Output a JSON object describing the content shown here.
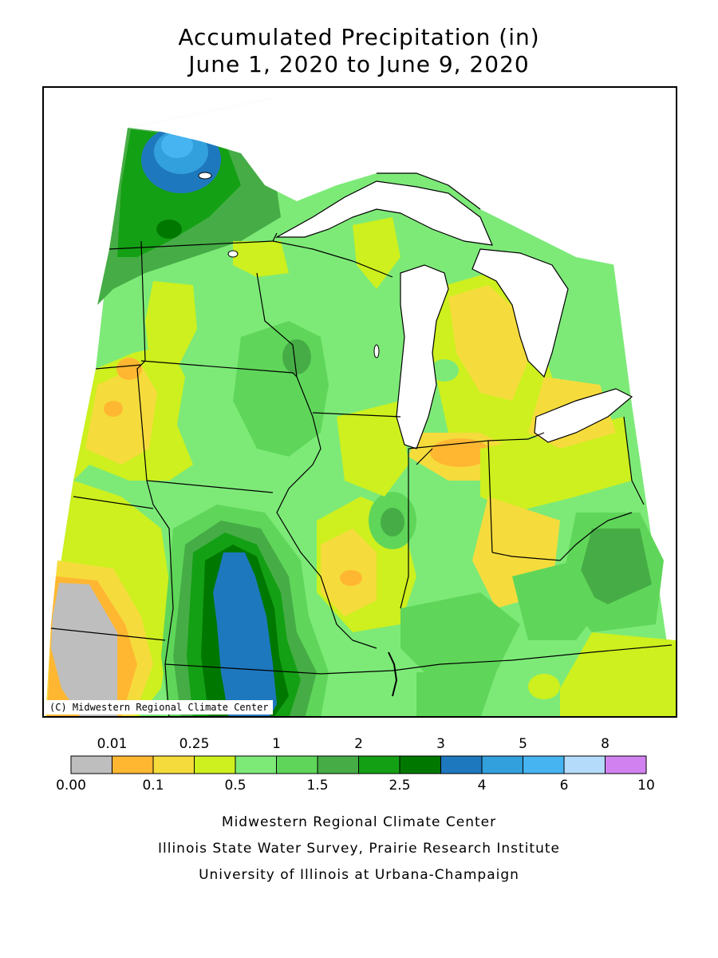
{
  "title": {
    "line1": "Accumulated Precipitation (in)",
    "line2": "June 1, 2020 to June 9, 2020"
  },
  "map": {
    "credit": "(C) Midwestern Regional Climate Center",
    "region": "Midwest US"
  },
  "legend": {
    "colors": [
      "#bebebe",
      "#ffb732",
      "#f5dc3c",
      "#cdf01e",
      "#7dea78",
      "#5fd65a",
      "#46ad46",
      "#14a014",
      "#007800",
      "#1e78be",
      "#32a0dc",
      "#46b4f0",
      "#b4dcfa",
      "#d282f0"
    ],
    "upper_labels": [
      "0.01",
      "0.25",
      "1",
      "2",
      "3",
      "5",
      "8"
    ],
    "lower_labels": [
      "0.00",
      "0.1",
      "0.5",
      "1.5",
      "2.5",
      "4",
      "6",
      "10"
    ]
  },
  "footer": {
    "line1": "Midwestern Regional Climate Center",
    "line2": "Illinois State Water Survey, Prairie Research Institute",
    "line3": "University of Illinois at Urbana-Champaign"
  }
}
